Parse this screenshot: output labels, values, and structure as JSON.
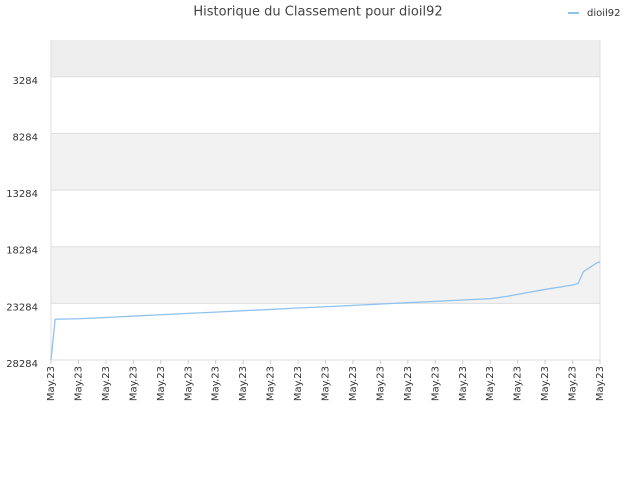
{
  "chart_data": {
    "type": "line",
    "title": "Historique du Classement pour dioil92",
    "x": [
      0,
      0.15,
      1,
      2,
      3,
      4,
      5,
      6,
      7,
      8,
      9,
      10,
      11,
      12,
      13,
      14,
      15,
      16,
      16.6,
      17,
      18,
      19,
      19.2,
      19.4,
      19.9,
      20
    ],
    "series": [
      {
        "name": "dioil92",
        "color": "#90c2f0",
        "values": [
          28284,
          24690,
          24644,
          24530,
          24407,
          24293,
          24170,
          24056,
          23933,
          23819,
          23696,
          23582,
          23459,
          23345,
          23223,
          23109,
          22986,
          22872,
          22670,
          22494,
          22056,
          21661,
          21530,
          20477,
          19687,
          19644
        ]
      }
    ],
    "xlim": [
      0,
      20
    ],
    "xticks": [
      {
        "value": 0,
        "label": "May.23"
      },
      {
        "value": 1,
        "label": "May.23"
      },
      {
        "value": 2,
        "label": "May.23"
      },
      {
        "value": 3,
        "label": "May.23"
      },
      {
        "value": 4,
        "label": "May.23"
      },
      {
        "value": 5,
        "label": "May.23"
      },
      {
        "value": 6,
        "label": "May.23"
      },
      {
        "value": 7,
        "label": "May.23"
      },
      {
        "value": 8,
        "label": "May.23"
      },
      {
        "value": 9,
        "label": "May.23"
      },
      {
        "value": 10,
        "label": "May.23"
      },
      {
        "value": 11,
        "label": "May.23"
      },
      {
        "value": 12,
        "label": "May.23"
      },
      {
        "value": 13,
        "label": "May.23"
      },
      {
        "value": 14,
        "label": "May.23"
      },
      {
        "value": 15,
        "label": "May.23"
      },
      {
        "value": 16,
        "label": "May.23"
      },
      {
        "value": 17,
        "label": "May.23"
      },
      {
        "value": 18,
        "label": "May.23"
      },
      {
        "value": 19,
        "label": "May.23"
      },
      {
        "value": 20,
        "label": "May.23"
      }
    ],
    "ylim": [
      28284,
      38
    ],
    "yticks": [
      3284,
      8284,
      13284,
      18284,
      23284,
      28284
    ],
    "grid": true,
    "legend": "top-right"
  }
}
